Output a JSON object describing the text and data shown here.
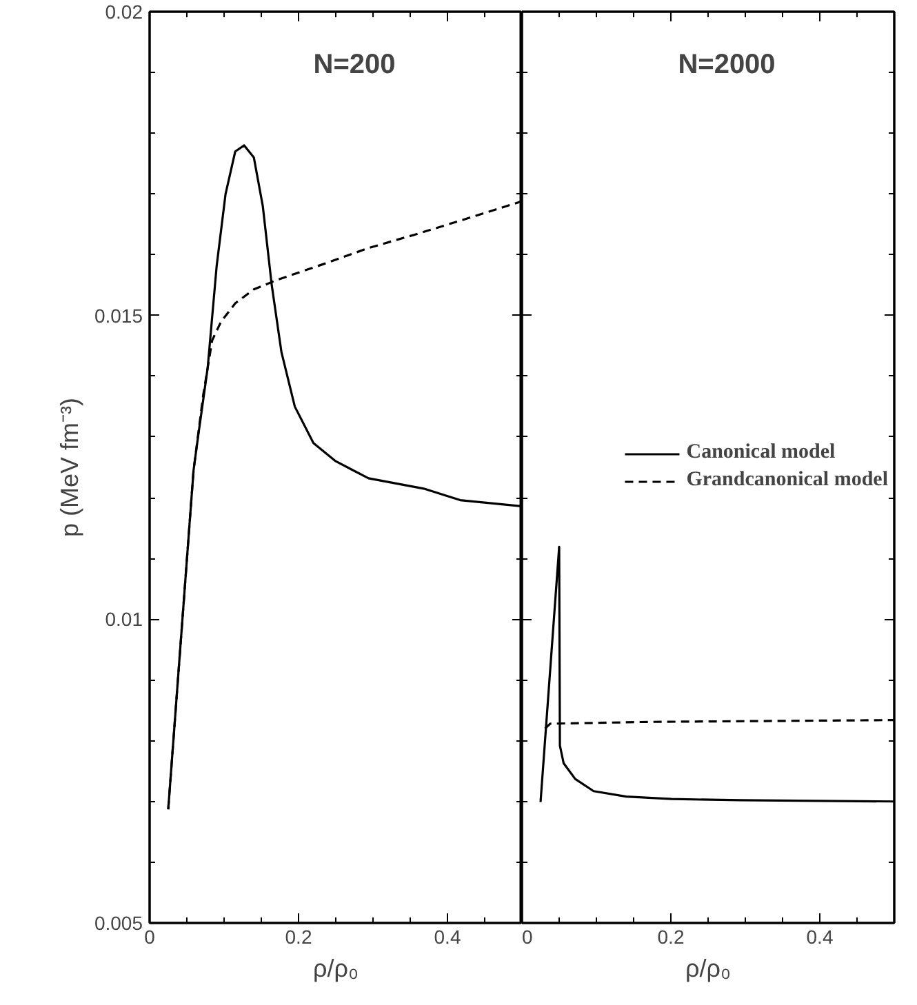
{
  "chart_data": [
    {
      "type": "line",
      "title": "N=200",
      "xlabel": "ρ/ρ₀",
      "ylabel": "p (MeV fm⁻³)",
      "xlim": [
        0,
        0.5
      ],
      "ylim": [
        0.005,
        0.02
      ],
      "xticks": [
        0,
        {
          "value": 0.05,
          "label": null
        },
        {
          "value": 0.1,
          "label": null
        },
        {
          "value": 0.15,
          "label": null
        },
        0.2,
        {
          "value": 0.25,
          "label": null
        },
        {
          "value": 0.3,
          "label": null
        },
        {
          "value": 0.35,
          "label": null
        },
        0.4,
        {
          "value": 0.45,
          "label": null
        }
      ],
      "yticks": [
        0.005,
        {
          "value": 0.006,
          "label": null
        },
        {
          "value": 0.007,
          "label": null
        },
        {
          "value": 0.008,
          "label": null
        },
        {
          "value": 0.009,
          "label": null
        },
        0.01,
        {
          "value": 0.011,
          "label": null
        },
        {
          "value": 0.012,
          "label": null
        },
        {
          "value": 0.013,
          "label": null
        },
        {
          "value": 0.014,
          "label": null
        },
        0.015,
        {
          "value": 0.016,
          "label": null
        },
        {
          "value": 0.017,
          "label": null
        },
        {
          "value": 0.018,
          "label": null
        },
        {
          "value": 0.019,
          "label": null
        },
        0.02
      ],
      "grid": false,
      "legend": false,
      "series": [
        {
          "color": "#000000",
          "line_style": "solid",
          "x": [
            0.025,
            0.059,
            0.065,
            0.078,
            0.09,
            0.102,
            0.115,
            0.127,
            0.14,
            0.152,
            0.164,
            0.177,
            0.195,
            0.22,
            0.25,
            0.294,
            0.368,
            0.417,
            0.5
          ],
          "values": [
            0.00687,
            0.01245,
            0.013,
            0.01414,
            0.01581,
            0.017,
            0.0177,
            0.0178,
            0.0176,
            0.0168,
            0.0155,
            0.0144,
            0.0135,
            0.0129,
            0.0126,
            0.01232,
            0.01215,
            0.01196,
            0.01186
          ]
        },
        {
          "color": "#000000",
          "line_style": "dashed",
          "x": [
            0.025,
            0.059,
            0.072,
            0.084,
            0.096,
            0.115,
            0.14,
            0.17,
            0.232,
            0.294,
            0.356,
            0.417,
            0.5
          ],
          "values": [
            0.00687,
            0.01245,
            0.01369,
            0.01459,
            0.0149,
            0.0152,
            0.01543,
            0.01558,
            0.01584,
            0.01611,
            0.01633,
            0.01656,
            0.01688
          ]
        }
      ]
    },
    {
      "type": "line",
      "title": "N=2000",
      "xlabel": "ρ/ρ₀",
      "xlim": [
        0,
        0.5
      ],
      "ylim": [
        0.005,
        0.02
      ],
      "tick_labels": "x",
      "xticks": [
        0,
        {
          "value": 0.05,
          "label": null
        },
        {
          "value": 0.1,
          "label": null
        },
        {
          "value": 0.15,
          "label": null
        },
        0.2,
        {
          "value": 0.25,
          "label": null
        },
        {
          "value": 0.3,
          "label": null
        },
        {
          "value": 0.35,
          "label": null
        },
        0.4,
        {
          "value": 0.45,
          "label": null
        }
      ],
      "yticks": [
        0.005,
        {
          "value": 0.006,
          "label": null
        },
        {
          "value": 0.007,
          "label": null
        },
        {
          "value": 0.008,
          "label": null
        },
        {
          "value": 0.009,
          "label": null
        },
        0.01,
        {
          "value": 0.011,
          "label": null
        },
        {
          "value": 0.012,
          "label": null
        },
        {
          "value": 0.013,
          "label": null
        },
        {
          "value": 0.014,
          "label": null
        },
        0.015,
        {
          "value": 0.016,
          "label": null
        },
        {
          "value": 0.017,
          "label": null
        },
        {
          "value": 0.018,
          "label": null
        },
        {
          "value": 0.019,
          "label": null
        },
        0.02
      ],
      "grid": false,
      "legend": "right",
      "series": [
        {
          "name": "Canonical model",
          "color": "#000000",
          "line_style": "solid",
          "x": [
            0.025,
            0.05,
            0.051,
            0.056,
            0.0716,
            0.0963,
            0.14,
            0.201,
            0.294,
            0.5
          ],
          "values": [
            0.00699,
            0.01119,
            0.00792,
            0.00763,
            0.00737,
            0.00717,
            0.00708,
            0.00704,
            0.00702,
            0.007
          ]
        },
        {
          "name": "Grandcanonical model",
          "color": "#000000",
          "line_style": "dashed",
          "x": [
            0.031,
            0.038,
            0.17,
            0.5
          ],
          "values": [
            0.0082,
            0.00828,
            0.00831,
            0.00834
          ]
        }
      ]
    }
  ]
}
